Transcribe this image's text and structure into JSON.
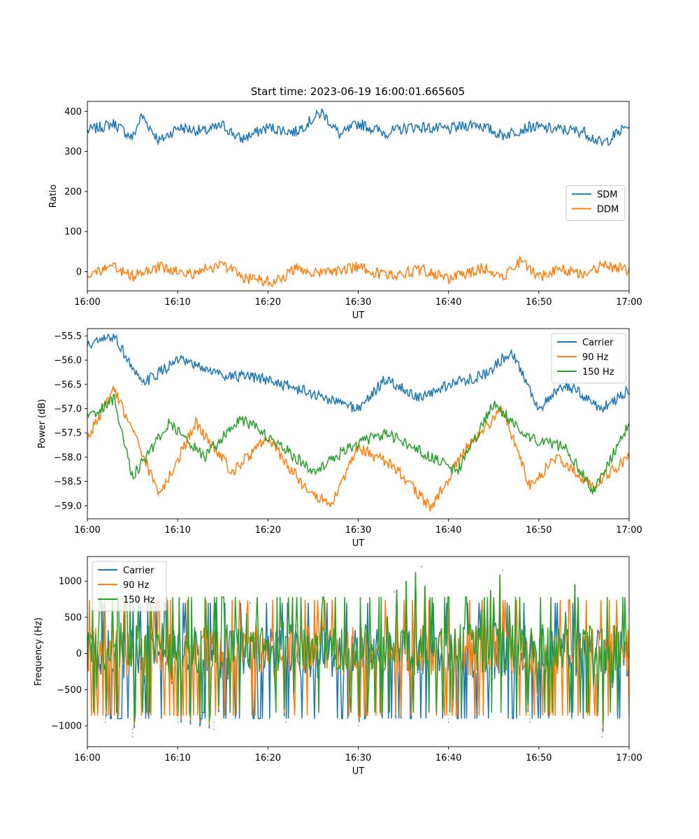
{
  "figure": {
    "title": "Start time: 2023-06-19 16:00:01.665605"
  },
  "colors": {
    "tab_blue": "#1f77b4",
    "tab_orange": "#ff7f0e",
    "tab_green": "#2ca02c"
  },
  "chart_data": [
    {
      "type": "line",
      "title": "Start time: 2023-06-19 16:00:01.665605",
      "xlabel": "UT",
      "ylabel": "Ratio",
      "xlim": [
        "16:00",
        "17:00"
      ],
      "ylim": [
        -48,
        425
      ],
      "x_ticks": [
        "16:00",
        "16:10",
        "16:20",
        "16:30",
        "16:40",
        "16:50",
        "17:00"
      ],
      "y_ticks": [
        0,
        100,
        200,
        300,
        400
      ],
      "grid": false,
      "legend": "center-right",
      "series": [
        {
          "name": "SDM",
          "color": "#1f77b4",
          "x": [
            "16:00",
            "16:03",
            "16:05",
            "16:06",
            "16:08",
            "16:10",
            "16:13",
            "16:15",
            "16:17",
            "16:20",
            "16:23",
            "16:26",
            "16:28",
            "16:30",
            "16:33",
            "16:36",
            "16:40",
            "16:43",
            "16:46",
            "16:49",
            "16:52",
            "16:55",
            "16:57",
            "17:00"
          ],
          "values": [
            352,
            370,
            333,
            390,
            325,
            360,
            350,
            365,
            330,
            360,
            348,
            398,
            340,
            370,
            346,
            362,
            355,
            370,
            340,
            362,
            355,
            350,
            318,
            366
          ]
        },
        {
          "name": "DDM",
          "color": "#ff7f0e",
          "x": [
            "16:00",
            "16:03",
            "16:05",
            "16:08",
            "16:11",
            "16:15",
            "16:17",
            "16:21",
            "16:23",
            "16:26",
            "16:30",
            "16:33",
            "16:37",
            "16:40",
            "16:44",
            "16:46",
            "16:48",
            "16:50",
            "16:52",
            "16:55",
            "16:57",
            "17:00"
          ],
          "values": [
            -5,
            10,
            -12,
            12,
            -8,
            20,
            -15,
            -25,
            8,
            -5,
            12,
            -10,
            5,
            -18,
            10,
            -12,
            28,
            -15,
            8,
            -5,
            15,
            3
          ]
        }
      ]
    },
    {
      "type": "line",
      "xlabel": "UT",
      "ylabel": "Power (dB)",
      "xlim": [
        "16:00",
        "17:00"
      ],
      "ylim": [
        -59.27,
        -55.35
      ],
      "x_ticks": [
        "16:00",
        "16:10",
        "16:20",
        "16:30",
        "16:40",
        "16:50",
        "17:00"
      ],
      "y_ticks": [
        -55.5,
        -56.0,
        -56.5,
        -57.0,
        -57.5,
        -58.0,
        -58.5,
        -59.0
      ],
      "grid": false,
      "legend": "top-right",
      "series": [
        {
          "name": "Carrier",
          "color": "#1f77b4",
          "x": [
            "16:00",
            "16:03",
            "16:06",
            "16:10",
            "16:15",
            "16:20",
            "16:25",
            "16:30",
            "16:33",
            "16:37",
            "16:40",
            "16:44",
            "16:47",
            "16:50",
            "16:53",
            "16:57",
            "17:00"
          ],
          "values": [
            -55.7,
            -55.5,
            -56.5,
            -56.0,
            -56.3,
            -56.4,
            -56.7,
            -57.0,
            -56.4,
            -56.8,
            -56.5,
            -56.3,
            -55.8,
            -57.0,
            -56.5,
            -57.0,
            -56.6
          ]
        },
        {
          "name": "90 Hz",
          "color": "#ff7f0e",
          "x": [
            "16:00",
            "16:03",
            "16:06",
            "16:08",
            "16:12",
            "16:16",
            "16:20",
            "16:24",
            "16:27",
            "16:30",
            "16:34",
            "16:38",
            "16:42",
            "16:46",
            "16:49",
            "16:52",
            "16:56",
            "17:00"
          ],
          "values": [
            -57.6,
            -56.6,
            -57.9,
            -58.8,
            -57.3,
            -58.3,
            -57.6,
            -58.6,
            -59.0,
            -57.8,
            -58.2,
            -59.05,
            -57.8,
            -57.0,
            -58.6,
            -58.0,
            -58.6,
            -58.0
          ]
        },
        {
          "name": "150 Hz",
          "color": "#2ca02c",
          "x": [
            "16:00",
            "16:03",
            "16:05",
            "16:09",
            "16:13",
            "16:17",
            "16:21",
            "16:25",
            "16:29",
            "16:33",
            "16:37",
            "16:41",
            "16:45",
            "16:49",
            "16:53",
            "16:56",
            "17:00"
          ],
          "values": [
            -57.2,
            -56.8,
            -58.4,
            -57.3,
            -58.0,
            -57.2,
            -57.7,
            -58.3,
            -57.8,
            -57.5,
            -57.9,
            -58.3,
            -56.9,
            -57.6,
            -57.8,
            -58.7,
            -57.3
          ]
        }
      ]
    },
    {
      "type": "line",
      "xlabel": "UT",
      "ylabel": "Frequency (Hz)",
      "xlim": [
        "16:00",
        "17:00"
      ],
      "ylim": [
        -1290,
        1340
      ],
      "x_ticks": [
        "16:00",
        "16:10",
        "16:20",
        "16:30",
        "16:40",
        "16:50",
        "17:00"
      ],
      "y_ticks": [
        -1000,
        -500,
        0,
        500,
        1000
      ],
      "grid": false,
      "legend": "top-left",
      "series": [
        {
          "name": "Carrier",
          "color": "#1f77b4",
          "x": [
            "16:00",
            "16:02",
            "16:04",
            "16:05",
            "16:08",
            "16:10",
            "16:14",
            "16:18",
            "16:22",
            "16:26",
            "16:30",
            "16:34",
            "16:37",
            "16:40",
            "16:44",
            "16:46",
            "16:49",
            "16:54",
            "16:57",
            "17:00"
          ],
          "values": [
            -200,
            -950,
            900,
            -1150,
            650,
            -950,
            -1050,
            700,
            -950,
            600,
            -1000,
            850,
            1200,
            -950,
            750,
            1150,
            -950,
            950,
            -1150,
            600
          ]
        },
        {
          "name": "90 Hz",
          "color": "#ff7f0e",
          "x": [
            "16:00",
            "16:02",
            "16:04",
            "16:05",
            "16:08",
            "16:10",
            "16:14",
            "16:18",
            "16:22",
            "16:26",
            "16:30",
            "16:34",
            "16:37",
            "16:40",
            "16:44",
            "16:46",
            "16:49",
            "16:54",
            "16:57",
            "17:00"
          ],
          "values": [
            -150,
            -900,
            900,
            -1100,
            650,
            -900,
            -1000,
            700,
            -900,
            600,
            -950,
            850,
            1200,
            -900,
            750,
            1150,
            -900,
            950,
            -1100,
            600
          ]
        },
        {
          "name": "150 Hz",
          "color": "#2ca02c",
          "x": [
            "16:00",
            "16:02",
            "16:04",
            "16:05",
            "16:08",
            "16:10",
            "16:14",
            "16:18",
            "16:22",
            "16:26",
            "16:30",
            "16:34",
            "16:37",
            "16:40",
            "16:44",
            "16:46",
            "16:49",
            "16:54",
            "16:57",
            "17:00"
          ],
          "values": [
            -100,
            -850,
            900,
            -1050,
            650,
            -850,
            -950,
            700,
            -850,
            600,
            -900,
            850,
            1200,
            -850,
            750,
            1150,
            -850,
            950,
            -1050,
            600
          ]
        }
      ]
    }
  ]
}
